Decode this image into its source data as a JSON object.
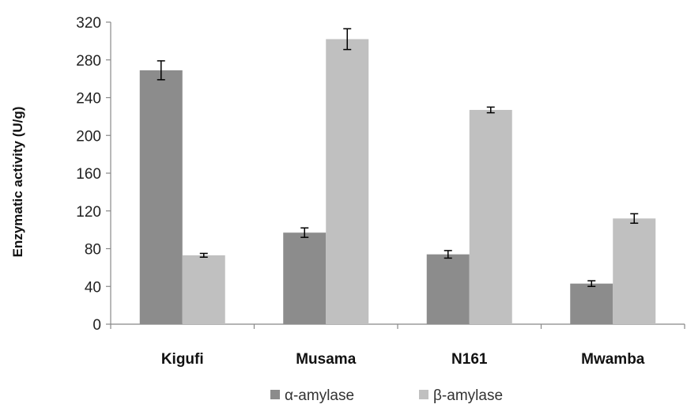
{
  "chart_data": {
    "type": "bar",
    "title": "",
    "xlabel": "",
    "ylabel": "Enzymatic activity (U/g)",
    "ylim": [
      0,
      320
    ],
    "yticks": [
      "0",
      "40",
      "80",
      "120",
      "160",
      "200",
      "240",
      "280",
      "320"
    ],
    "categories": [
      "Kigufi",
      "Musama",
      "N161",
      "Mwamba"
    ],
    "series": [
      {
        "name": "α-amylase",
        "color": "#8c8c8c",
        "values": [
          269,
          97,
          74,
          43
        ],
        "errors": [
          10,
          5,
          4,
          3
        ]
      },
      {
        "name": "β-amylase",
        "color": "#c0c0c0",
        "values": [
          73,
          302,
          227,
          112
        ],
        "errors": [
          2,
          11,
          3,
          5
        ]
      }
    ],
    "grid": false,
    "legend_position": "bottom"
  }
}
